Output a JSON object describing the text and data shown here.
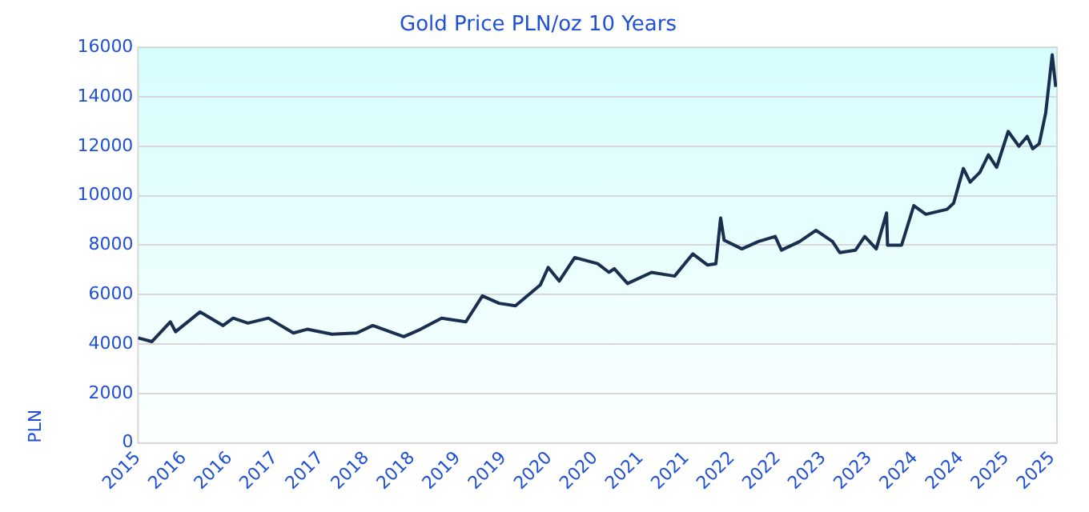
{
  "chart_data": {
    "type": "line",
    "title": "Gold Price PLN/oz 10 Years",
    "ylabel": "PLN",
    "xlim": [
      "2015-10-01",
      "2025-10-20"
    ],
    "xticks": [
      {
        "value": "2015-10-01",
        "label": "2015"
      },
      {
        "value": "2016-04-01",
        "label": "2016"
      },
      {
        "value": "2016-10-01",
        "label": "2016"
      },
      {
        "value": "2017-04-01",
        "label": "2017"
      },
      {
        "value": "2017-10-01",
        "label": "2017"
      },
      {
        "value": "2018-04-01",
        "label": "2018"
      },
      {
        "value": "2018-10-01",
        "label": "2018"
      },
      {
        "value": "2019-04-01",
        "label": "2019"
      },
      {
        "value": "2019-10-01",
        "label": "2019"
      },
      {
        "value": "2020-04-01",
        "label": "2020"
      },
      {
        "value": "2020-10-01",
        "label": "2020"
      },
      {
        "value": "2021-04-01",
        "label": "2021"
      },
      {
        "value": "2021-10-01",
        "label": "2021"
      },
      {
        "value": "2022-04-01",
        "label": "2022"
      },
      {
        "value": "2022-10-01",
        "label": "2022"
      },
      {
        "value": "2023-04-01",
        "label": "2023"
      },
      {
        "value": "2023-10-01",
        "label": "2023"
      },
      {
        "value": "2024-04-01",
        "label": "2024"
      },
      {
        "value": "2024-10-01",
        "label": "2024"
      },
      {
        "value": "2025-04-01",
        "label": "2025"
      },
      {
        "value": "2025-10-01",
        "label": "2025"
      }
    ],
    "ylim": [
      0,
      16000
    ],
    "yticks": [
      0,
      2000,
      4000,
      6000,
      8000,
      10000,
      12000,
      14000,
      16000
    ],
    "grid": "y",
    "legend": false,
    "marker": "none",
    "line_style": "solid",
    "x": [
      "2015-10-01",
      "2015-11-25",
      "2016-02-07",
      "2016-02-28",
      "2016-06-05",
      "2016-09-05",
      "2016-10-15",
      "2016-12-13",
      "2017-03-05",
      "2017-06-13",
      "2017-08-07",
      "2017-11-14",
      "2018-02-21",
      "2018-04-26",
      "2018-08-28",
      "2018-11-03",
      "2019-01-26",
      "2019-05-03",
      "2019-07-08",
      "2019-09-13",
      "2019-11-17",
      "2020-02-25",
      "2020-03-27",
      "2020-05-10",
      "2020-07-11",
      "2020-10-11",
      "2020-11-25",
      "2020-12-16",
      "2021-02-07",
      "2021-05-14",
      "2021-08-14",
      "2021-10-26",
      "2021-12-23",
      "2022-01-26",
      "2022-02-14",
      "2022-02-28",
      "2022-05-10",
      "2022-07-15",
      "2022-09-20",
      "2022-10-15",
      "2022-12-27",
      "2023-03-02",
      "2023-05-07",
      "2023-06-05",
      "2023-08-07",
      "2023-09-13",
      "2023-10-29",
      "2023-12-09",
      "2023-12-13",
      "2024-02-07",
      "2024-03-27",
      "2024-05-14",
      "2024-08-07",
      "2024-09-02",
      "2024-10-11",
      "2024-11-07",
      "2024-12-16",
      "2025-01-19",
      "2025-02-21",
      "2025-04-08",
      "2025-05-21",
      "2025-06-23",
      "2025-07-15",
      "2025-08-10",
      "2025-09-05",
      "2025-10-01",
      "2025-10-15"
    ],
    "series": [
      {
        "color": "#1a2e50",
        "values": [
          4250,
          4100,
          4900,
          4500,
          5300,
          4750,
          5050,
          4850,
          5050,
          4450,
          4600,
          4400,
          4450,
          4750,
          4300,
          4600,
          5050,
          4900,
          5950,
          5650,
          5550,
          6400,
          7100,
          6550,
          7500,
          7250,
          6900,
          7050,
          6450,
          6900,
          6750,
          7650,
          7200,
          7250,
          9100,
          8200,
          7850,
          8150,
          8350,
          7800,
          8150,
          8600,
          8150,
          7700,
          7800,
          8350,
          7850,
          9300,
          8000,
          8000,
          9600,
          9250,
          9450,
          9700,
          11100,
          10550,
          10950,
          11650,
          11150,
          12600,
          12000,
          12400,
          11900,
          12100,
          13350,
          15700,
          14400
        ]
      }
    ]
  }
}
